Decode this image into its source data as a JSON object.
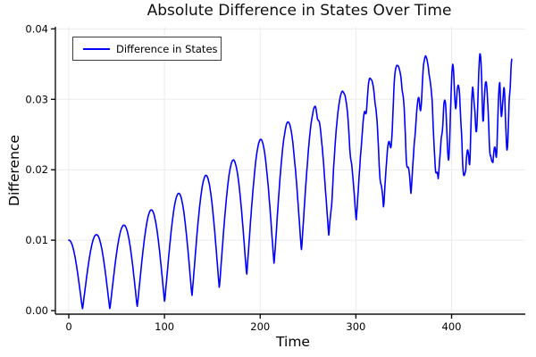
{
  "page": {
    "background": "#ffffff"
  },
  "chart_data": {
    "type": "line",
    "title": "Absolute Difference in States Over Time",
    "xlabel": "Time",
    "ylabel": "Difference",
    "legend": {
      "position": "top-left",
      "entries": [
        {
          "label": "Difference in States",
          "color": "#0000ff"
        }
      ]
    },
    "axes": {
      "xlim": [
        -14,
        477
      ],
      "ylim": [
        -0.0005,
        0.0403
      ],
      "xticks": [
        0,
        100,
        200,
        300,
        400
      ],
      "xtick_labels": [
        "0",
        "100",
        "200",
        "300",
        "400"
      ],
      "yticks": [
        0,
        0.01,
        0.02,
        0.03,
        0.04
      ],
      "ytick_labels": [
        "0.00",
        "0.01",
        "0.02",
        "0.03",
        "0.04"
      ],
      "grid": true
    },
    "colors": {
      "grid": "#ebebeb",
      "spine": "#111111",
      "tick_label": "#000000",
      "background": "#ffffff",
      "line": "#0000ff"
    },
    "series": [
      {
        "name": "Difference in States",
        "color": "#0000ff",
        "line_width": 1.6,
        "t_start": 0,
        "t_end": 463,
        "sample_step": 0.4,
        "oscillation_period": 28.6,
        "shape_exponent": 1.05,
        "peak_envelope": [
          [
            0,
            0.01
          ],
          [
            29,
            0.0108
          ],
          [
            57,
            0.0121
          ],
          [
            86,
            0.0143
          ],
          [
            114,
            0.0166
          ],
          [
            143,
            0.0192
          ],
          [
            172,
            0.0214
          ],
          [
            200,
            0.0243
          ],
          [
            229,
            0.0268
          ],
          [
            257,
            0.029
          ],
          [
            286,
            0.0312
          ],
          [
            315,
            0.0331
          ],
          [
            343,
            0.0348
          ],
          [
            372,
            0.0362
          ],
          [
            400,
            0.0373
          ],
          [
            429,
            0.0381
          ],
          [
            450,
            0.039
          ],
          [
            463,
            0.0392
          ]
        ],
        "trough_envelope": [
          [
            0,
            0.0002
          ],
          [
            43,
            0.0002
          ],
          [
            71,
            0.0005
          ],
          [
            99,
            0.0012
          ],
          [
            128,
            0.002
          ],
          [
            158,
            0.0032
          ],
          [
            187,
            0.0051
          ],
          [
            215,
            0.0066
          ],
          [
            243,
            0.0085
          ],
          [
            272,
            0.0106
          ],
          [
            300,
            0.0127
          ],
          [
            329,
            0.0148
          ],
          [
            358,
            0.0168
          ],
          [
            386,
            0.0188
          ],
          [
            415,
            0.0203
          ],
          [
            443,
            0.0215
          ],
          [
            463,
            0.0222
          ]
        ],
        "ripple": {
          "base_amplitude": 1e-05,
          "growth_tau": 78,
          "periods": [
            4.7,
            10.3,
            6.1
          ],
          "phases": [
            1.0,
            2.1,
            0.3
          ],
          "weights": [
            0.62,
            0.38,
            0.25
          ],
          "spike_exponent": 1.4
        },
        "notches": [
          [
            260,
            0.0012,
            1.4
          ],
          [
            275,
            0.0018,
            1.5
          ],
          [
            294,
            0.0022,
            1.6
          ],
          [
            311,
            0.0028,
            1.7
          ],
          [
            325,
            0.003,
            1.8
          ],
          [
            337,
            0.0065,
            2.2
          ],
          [
            353,
            0.004,
            1.8
          ],
          [
            368,
            0.0055,
            2.0
          ],
          [
            383,
            0.004,
            1.8
          ],
          [
            397,
            0.0145,
            2.6
          ],
          [
            404,
            0.007,
            2.0
          ],
          [
            412,
            0.005,
            1.8
          ],
          [
            419,
            0.006,
            1.8
          ],
          [
            426,
            0.0115,
            2.4
          ],
          [
            433,
            0.008,
            2.0
          ],
          [
            440,
            0.005,
            1.6
          ],
          [
            447,
            0.006,
            1.6
          ],
          [
            453,
            0.0075,
            1.8
          ],
          [
            458,
            0.0165,
            2.6
          ]
        ],
        "value_clamp": [
          0.0002,
          0.0394
        ]
      }
    ]
  }
}
